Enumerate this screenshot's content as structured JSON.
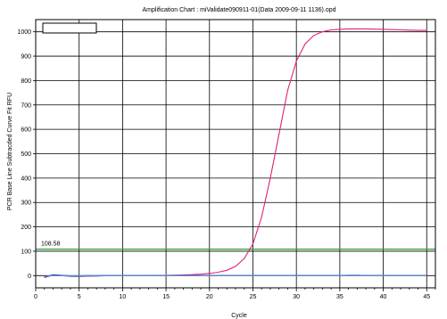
{
  "chart_data": {
    "type": "line",
    "title": "Amplification Chart : miValidate090911-01(Data 2009-09-11 1136).opd",
    "xlabel": "Cycle",
    "ylabel": "PCR Base Line Subtracded Curve Fit RFU",
    "xlim": [
      0,
      46
    ],
    "ylim": [
      -50,
      1050
    ],
    "x_ticks": [
      0,
      5,
      10,
      15,
      20,
      25,
      30,
      35,
      40,
      45
    ],
    "y_ticks": [
      0,
      100,
      200,
      300,
      400,
      500,
      600,
      700,
      800,
      900,
      1000
    ],
    "x_minor_step": 1,
    "grid": true,
    "threshold": {
      "value": 108.58,
      "label": "108.58",
      "color": "#2e9b2e"
    },
    "series": [
      {
        "color": "#e0207a",
        "x": [
          1,
          2,
          3,
          4,
          5,
          6,
          7,
          8,
          9,
          10,
          11,
          12,
          13,
          14,
          15,
          16,
          17,
          18,
          19,
          20,
          21,
          22,
          23,
          24,
          25,
          26,
          27,
          28,
          29,
          30,
          31,
          32,
          33,
          34,
          35,
          36,
          37,
          38,
          39,
          40,
          41,
          42,
          43,
          44,
          45
        ],
        "y": [
          -8,
          2,
          0,
          -2,
          -3,
          -2,
          -1,
          0,
          0,
          0,
          0,
          0,
          1,
          1,
          1,
          2,
          3,
          4,
          6,
          9,
          14,
          22,
          38,
          70,
          130,
          240,
          400,
          580,
          760,
          880,
          950,
          985,
          1000,
          1008,
          1010,
          1012,
          1012,
          1012,
          1011,
          1010,
          1009,
          1008,
          1007,
          1006,
          1006
        ]
      },
      {
        "color": "#1a2a8a",
        "x": [
          1,
          2,
          3,
          4,
          5,
          6,
          7,
          8,
          9,
          10,
          11,
          12,
          13,
          14,
          15,
          16,
          17,
          18,
          19,
          20,
          21,
          22,
          23,
          24,
          25,
          26,
          27,
          28,
          29,
          30,
          31,
          32,
          33,
          34,
          35,
          36,
          37,
          38,
          39,
          40,
          41,
          42,
          43,
          44,
          45
        ],
        "y": [
          -6,
          3,
          1,
          -2,
          -2,
          -1,
          -1,
          0,
          0,
          0,
          0,
          0,
          0,
          0,
          0,
          0,
          0,
          0,
          0,
          0,
          0,
          0,
          0,
          0,
          0,
          0,
          0,
          0,
          0,
          0,
          0,
          0,
          0,
          0,
          0,
          1,
          1,
          0,
          0,
          0,
          0,
          0,
          0,
          0,
          0
        ]
      },
      {
        "color": "#5a8ad0",
        "x": [
          1,
          2,
          3,
          4,
          5,
          6,
          7,
          8,
          9,
          10,
          11,
          12,
          13,
          14,
          15,
          16,
          17,
          18,
          19,
          20,
          21,
          22,
          23,
          24,
          25,
          26,
          27,
          28,
          29,
          30,
          31,
          32,
          33,
          34,
          35,
          36,
          37,
          38,
          39,
          40,
          41,
          42,
          43,
          44,
          45
        ],
        "y": [
          -4,
          1,
          0,
          -1,
          -1,
          0,
          0,
          0,
          0,
          0,
          0,
          0,
          0,
          0,
          0,
          0,
          0,
          0,
          0,
          0,
          0,
          0,
          0,
          0,
          0,
          0,
          0,
          0,
          0,
          0,
          0,
          0,
          0,
          0,
          0,
          0,
          0,
          0,
          0,
          0,
          0,
          0,
          0,
          0,
          0
        ]
      }
    ]
  }
}
